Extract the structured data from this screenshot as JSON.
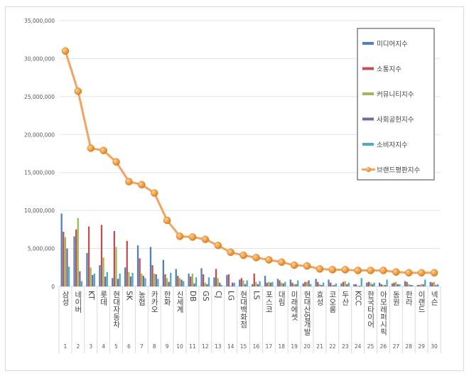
{
  "chart_data": {
    "type": "bar",
    "title": "",
    "xlabel": "",
    "ylabel": "",
    "ylim": [
      0,
      35000000
    ],
    "yticks": [
      "0",
      "5,000,000",
      "10,000,000",
      "15,000,000",
      "20,000,000",
      "25,000,000",
      "30,000,000",
      "35,000,000"
    ],
    "grid": true,
    "legend_position": "top-right",
    "categories": [
      "삼성",
      "네이버",
      "KT",
      "롯데",
      "현대자동차",
      "SK",
      "농협",
      "카카오",
      "한화",
      "신세계",
      "DB",
      "GS",
      "CJ",
      "LG",
      "현대백화점",
      "LS",
      "포스코",
      "대림",
      "미래에셋",
      "현대산업개발",
      "효성",
      "코오롱",
      "두산",
      "KCC",
      "한국타이어",
      "아모레퍼시픽",
      "동원",
      "한라",
      "이랜드",
      "넥슨"
    ],
    "ranks": [
      "1",
      "2",
      "3",
      "4",
      "5",
      "6",
      "7",
      "8",
      "9",
      "10",
      "11",
      "12",
      "13",
      "14",
      "15",
      "16",
      "17",
      "18",
      "19",
      "20",
      "21",
      "22",
      "23",
      "24",
      "25",
      "26",
      "27",
      "28",
      "29",
      "30"
    ],
    "series": [
      {
        "name": "미디어지수",
        "type": "bar",
        "color": "#4f81bd",
        "values": [
          9600000,
          6600000,
          4400000,
          2800000,
          1100000,
          2500000,
          5400000,
          5200000,
          3500000,
          2300000,
          1700000,
          2400000,
          1200000,
          1500000,
          900000,
          300000,
          1400000,
          1000000,
          900000,
          400000,
          1000000,
          900000,
          400000,
          300000,
          500000,
          500000,
          400000,
          700000,
          200000,
          600000
        ]
      },
      {
        "name": "소통지수",
        "type": "bar",
        "color": "#c0504d",
        "values": [
          7200000,
          7500000,
          7900000,
          8100000,
          7300000,
          6000000,
          3700000,
          2800000,
          1600000,
          1400000,
          1300000,
          1600000,
          2300000,
          1600000,
          1100000,
          1700000,
          500000,
          800000,
          500000,
          600000,
          600000,
          500000,
          600000,
          300000,
          600000,
          300000,
          500000,
          600000,
          200000,
          500000
        ]
      },
      {
        "name": "커뮤니티지수",
        "type": "bar",
        "color": "#9bbb59",
        "values": [
          6500000,
          9000000,
          2500000,
          3800000,
          5200000,
          1900000,
          1700000,
          1700000,
          1100000,
          1100000,
          1700000,
          500000,
          1100000,
          100000,
          800000,
          600000,
          600000,
          500000,
          300000,
          600000,
          300000,
          200000,
          700000,
          100000,
          500000,
          200000,
          600000,
          300000,
          300000,
          600000
        ]
      },
      {
        "name": "사회공헌지수",
        "type": "bar",
        "color": "#8064a2",
        "values": [
          5000000,
          2000000,
          1500000,
          1300000,
          1000000,
          1300000,
          1400000,
          1600000,
          600000,
          900000,
          400000,
          300000,
          500000,
          500000,
          300000,
          300000,
          500000,
          400000,
          300000,
          800000,
          200000,
          200000,
          300000,
          100000,
          300000,
          200000,
          300000,
          200000,
          300000,
          200000
        ]
      },
      {
        "name": "소비자지수",
        "type": "bar",
        "color": "#4bacc6",
        "values": [
          2600000,
          700000,
          1700000,
          1900000,
          1700000,
          1800000,
          1100000,
          1000000,
          1800000,
          700000,
          1200000,
          1200000,
          200000,
          500000,
          800000,
          700000,
          600000,
          600000,
          800000,
          300000,
          500000,
          400000,
          500000,
          1100000,
          500000,
          900000,
          300000,
          200000,
          900000,
          300000
        ]
      },
      {
        "name": "브랜드평판지수",
        "type": "line",
        "color": "#f79646",
        "values": [
          31000000,
          25700000,
          18200000,
          17900000,
          16400000,
          13800000,
          13400000,
          12300000,
          8700000,
          6600000,
          6500000,
          6200000,
          5400000,
          4500000,
          4100000,
          3800000,
          3500000,
          3200000,
          2800000,
          2700000,
          2300000,
          2200000,
          2200000,
          2100000,
          2100000,
          2100000,
          1900000,
          1800000,
          1800000,
          1800000
        ]
      }
    ]
  }
}
